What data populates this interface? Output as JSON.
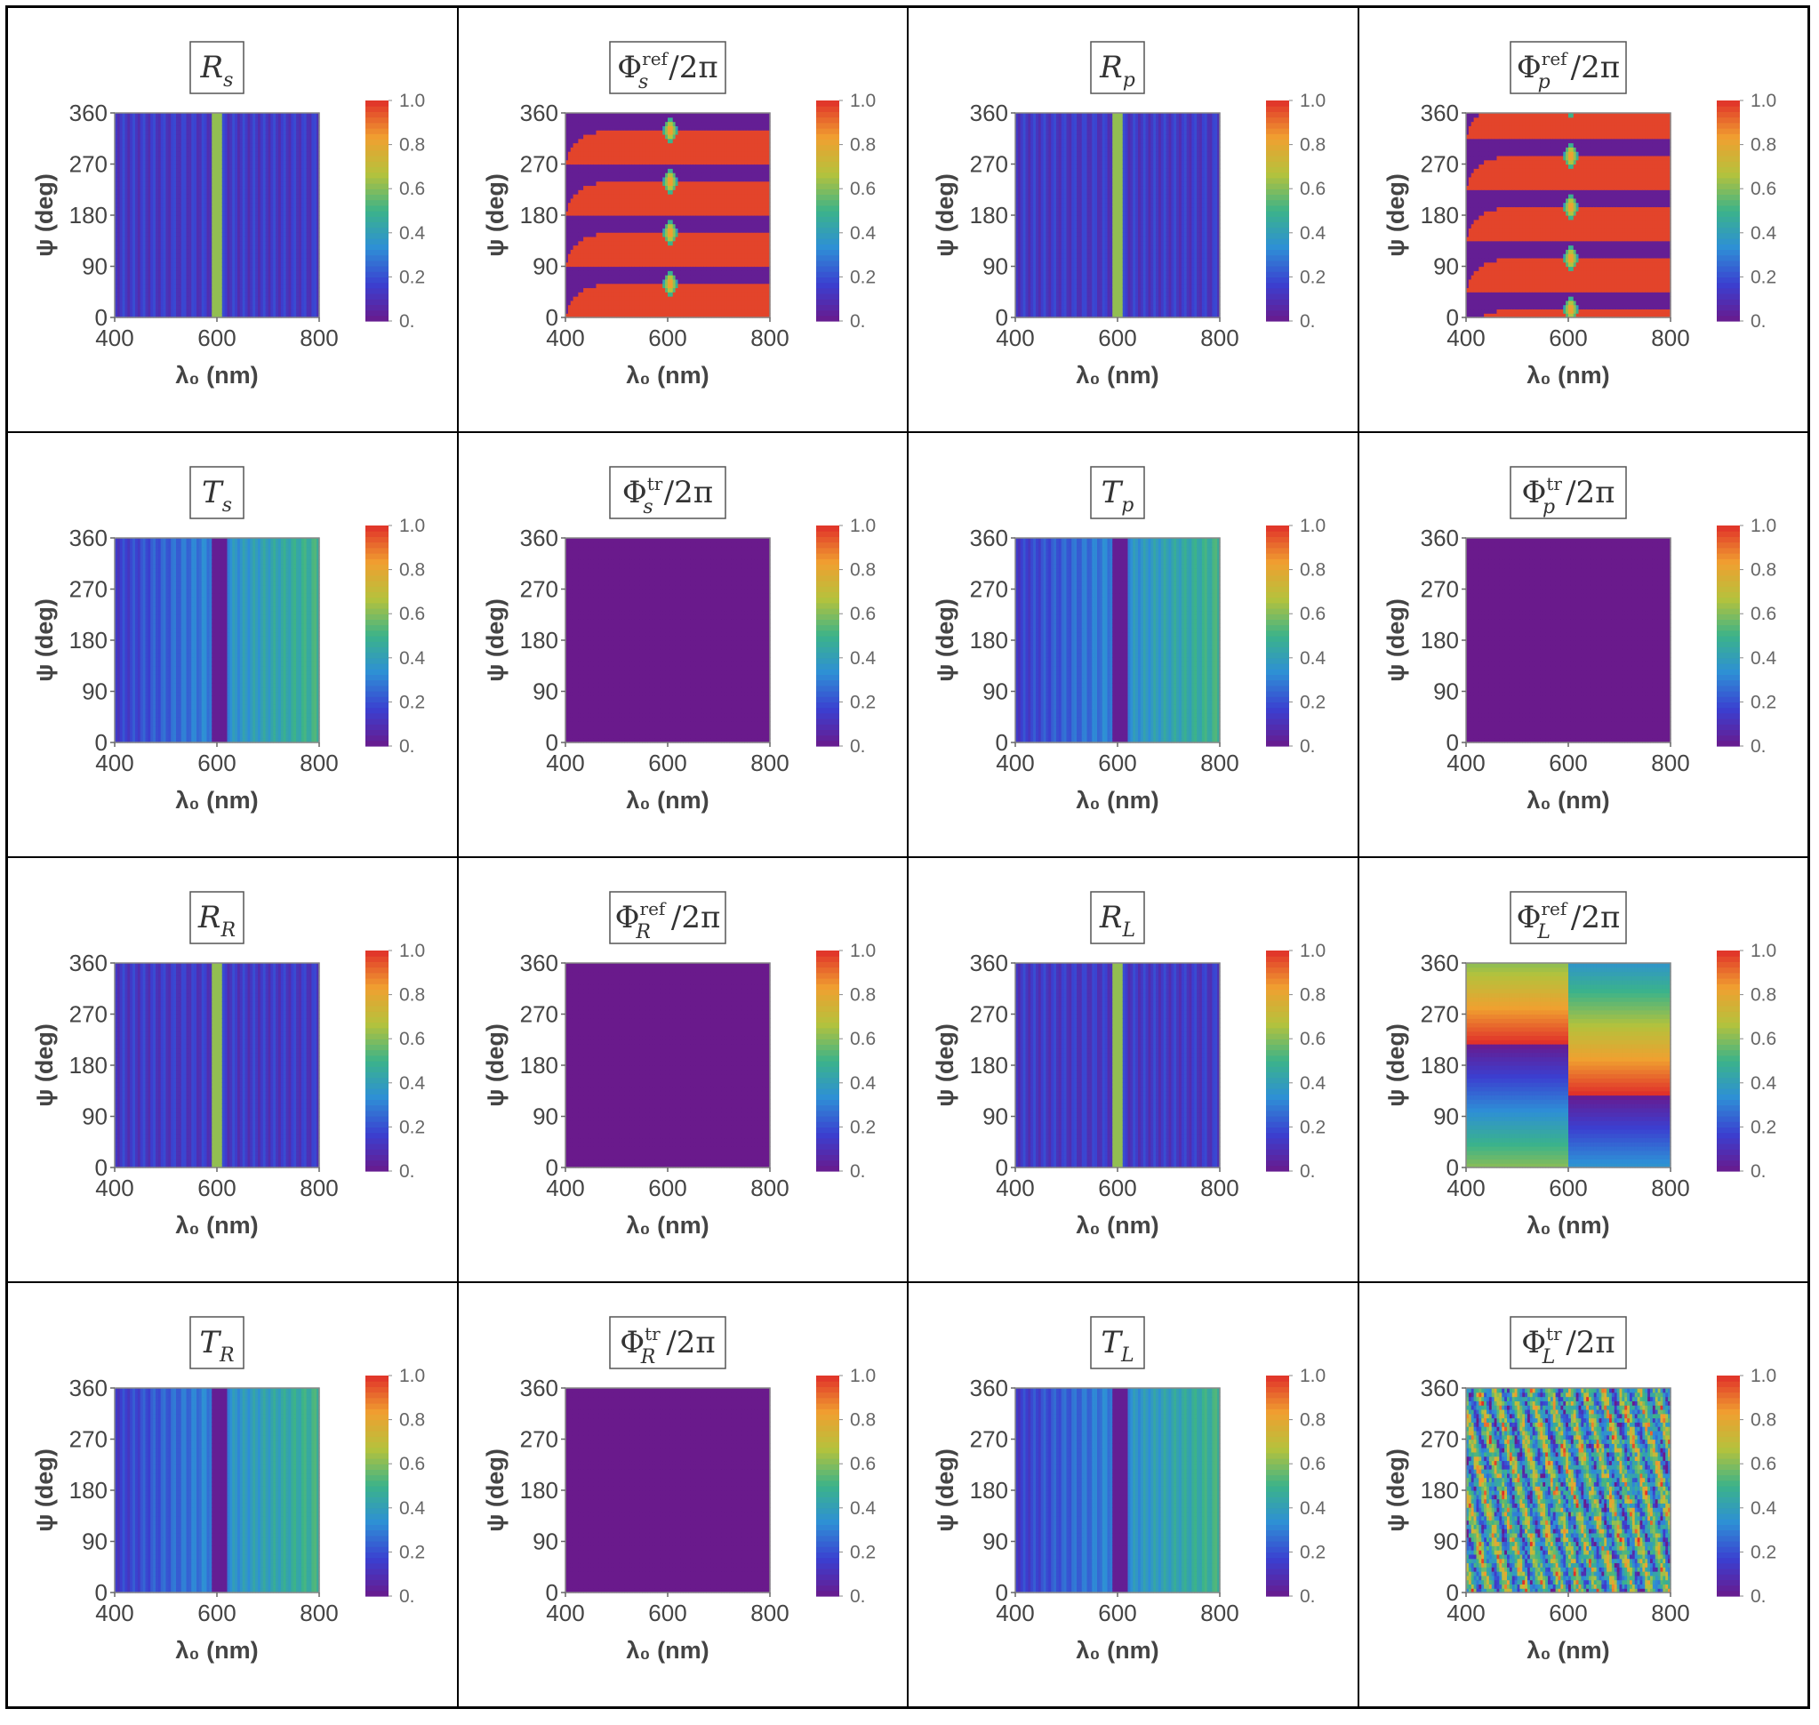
{
  "layout": {
    "rows": 4,
    "cols": 4
  },
  "shared_axes": {
    "xlabel": "λ₀ (nm)",
    "ylabel": "ψ (deg)",
    "xticks": [
      "400",
      "600",
      "800"
    ],
    "yticks": [
      "0",
      "90",
      "180",
      "270",
      "360"
    ],
    "colorbar_ticks": [
      "0.",
      "0.2",
      "0.4",
      "0.6",
      "0.8",
      "1.0"
    ],
    "xlim": [
      400,
      800
    ],
    "ylim": [
      0,
      360
    ],
    "clim": [
      0,
      1
    ]
  },
  "colormap": [
    "#6a1a8c",
    "#3b3fd0",
    "#2e8fd6",
    "#3bb38a",
    "#b4c23c",
    "#f0a030",
    "#e0302a"
  ],
  "chart_data": [
    {
      "type": "heatmap",
      "title": {
        "main": "R",
        "sub": "s",
        "sup": "",
        "suffix": ""
      },
      "pattern": "R"
    },
    {
      "type": "heatmap",
      "title": {
        "main": "Φ",
        "sub": "s",
        "sup": "ref",
        "suffix": "/2π"
      },
      "pattern": "Phi_s_ref"
    },
    {
      "type": "heatmap",
      "title": {
        "main": "R",
        "sub": "p",
        "sup": "",
        "suffix": ""
      },
      "pattern": "R"
    },
    {
      "type": "heatmap",
      "title": {
        "main": "Φ",
        "sub": "p",
        "sup": "ref",
        "suffix": "/2π"
      },
      "pattern": "Phi_p_ref"
    },
    {
      "type": "heatmap",
      "title": {
        "main": "T",
        "sub": "s",
        "sup": "",
        "suffix": ""
      },
      "pattern": "T"
    },
    {
      "type": "heatmap",
      "title": {
        "main": "Φ",
        "sub": "s",
        "sup": "tr",
        "suffix": "/2π"
      },
      "pattern": "zero"
    },
    {
      "type": "heatmap",
      "title": {
        "main": "T",
        "sub": "p",
        "sup": "",
        "suffix": ""
      },
      "pattern": "T"
    },
    {
      "type": "heatmap",
      "title": {
        "main": "Φ",
        "sub": "p",
        "sup": "tr",
        "suffix": "/2π"
      },
      "pattern": "zero"
    },
    {
      "type": "heatmap",
      "title": {
        "main": "R",
        "sub": "R",
        "sup": "",
        "suffix": ""
      },
      "pattern": "R"
    },
    {
      "type": "heatmap",
      "title": {
        "main": "Φ",
        "sub": "R",
        "sup": "ref",
        "suffix": "/2π"
      },
      "pattern": "zero"
    },
    {
      "type": "heatmap",
      "title": {
        "main": "R",
        "sub": "L",
        "sup": "",
        "suffix": ""
      },
      "pattern": "R"
    },
    {
      "type": "heatmap",
      "title": {
        "main": "Φ",
        "sub": "L",
        "sup": "ref",
        "suffix": "/2π"
      },
      "pattern": "Phi_L_ref"
    },
    {
      "type": "heatmap",
      "title": {
        "main": "T",
        "sub": "R",
        "sup": "",
        "suffix": ""
      },
      "pattern": "T"
    },
    {
      "type": "heatmap",
      "title": {
        "main": "Φ",
        "sub": "R",
        "sup": "tr",
        "suffix": "/2π"
      },
      "pattern": "zero"
    },
    {
      "type": "heatmap",
      "title": {
        "main": "T",
        "sub": "L",
        "sup": "",
        "suffix": ""
      },
      "pattern": "T"
    },
    {
      "type": "heatmap",
      "title": {
        "main": "Φ",
        "sub": "L",
        "sup": "tr",
        "suffix": "/2π"
      },
      "pattern": "noise"
    }
  ]
}
